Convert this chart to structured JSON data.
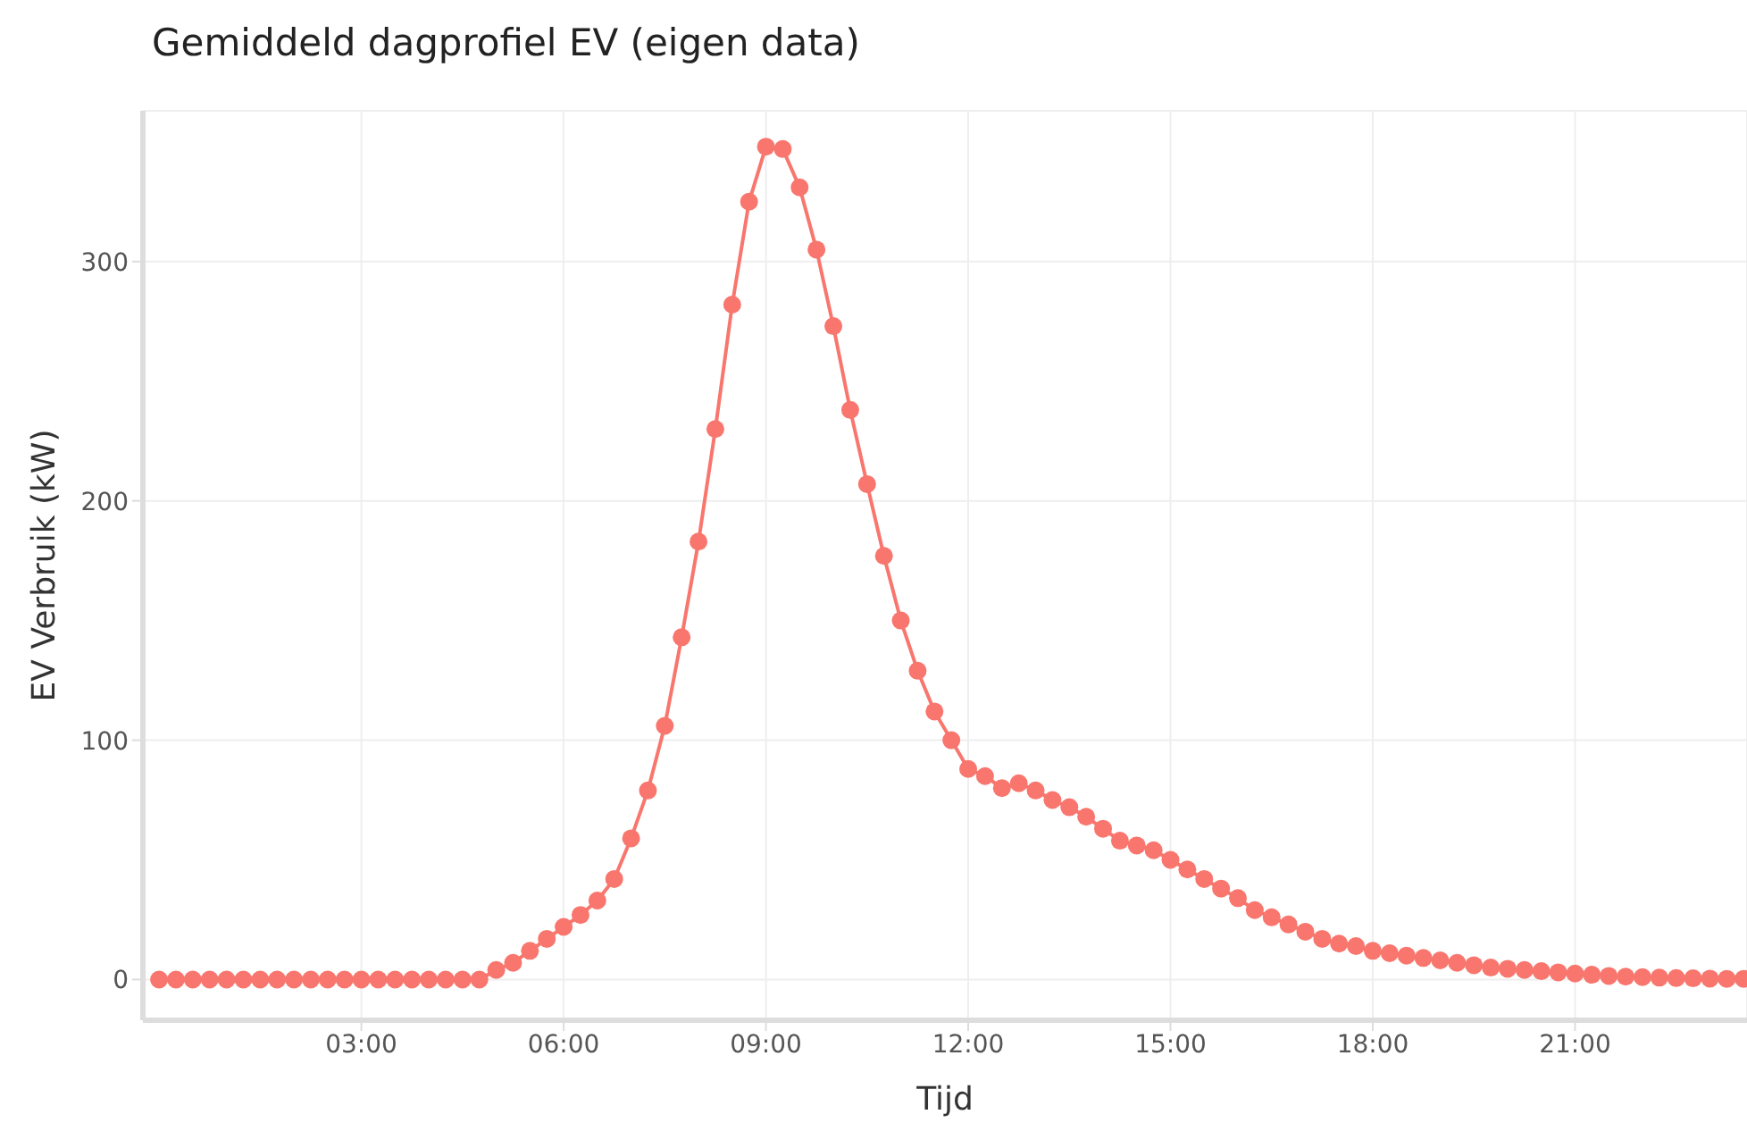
{
  "chart_data": {
    "type": "line",
    "title": "Gemiddeld dagprofiel EV (eigen data)",
    "xlabel": "Tijd",
    "ylabel": "EV Verbruik (kW)",
    "x": [
      0,
      0.25,
      0.5,
      0.75,
      1,
      1.25,
      1.5,
      1.75,
      2,
      2.25,
      2.5,
      2.75,
      3,
      3.25,
      3.5,
      3.75,
      4,
      4.25,
      4.5,
      4.75,
      5,
      5.25,
      5.5,
      5.75,
      6,
      6.25,
      6.5,
      6.75,
      7,
      7.25,
      7.5,
      7.75,
      8,
      8.25,
      8.5,
      8.75,
      9,
      9.25,
      9.5,
      9.75,
      10,
      10.25,
      10.5,
      10.75,
      11,
      11.25,
      11.5,
      11.75,
      12,
      12.25,
      12.5,
      12.75,
      13,
      13.25,
      13.5,
      13.75,
      14,
      14.25,
      14.5,
      14.75,
      15,
      15.25,
      15.5,
      15.75,
      16,
      16.25,
      16.5,
      16.75,
      17,
      17.25,
      17.5,
      17.75,
      18,
      18.25,
      18.5,
      18.75,
      19,
      19.25,
      19.5,
      19.75,
      20,
      20.25,
      20.5,
      20.75,
      21,
      21.25,
      21.5,
      21.75,
      22,
      22.25,
      22.5,
      22.75,
      23,
      23.25,
      23.5
    ],
    "series": [
      {
        "color": "#f8766d",
        "values": [
          0,
          0,
          0,
          0,
          0,
          0,
          0,
          0,
          0,
          0,
          0,
          0,
          0,
          0,
          0,
          0,
          0,
          0,
          0,
          0,
          4,
          7,
          12,
          17,
          22,
          27,
          33,
          42,
          59,
          79,
          106,
          143,
          183,
          230,
          282,
          325,
          348,
          347,
          331,
          305,
          273,
          238,
          207,
          177,
          150,
          129,
          112,
          100,
          88,
          85,
          80,
          82,
          79,
          75,
          72,
          68,
          63,
          58,
          56,
          54,
          50,
          46,
          42,
          38,
          34,
          29,
          26,
          23,
          20,
          17,
          15,
          14,
          12,
          11,
          10,
          9,
          8,
          7,
          6,
          5,
          4.5,
          4,
          3.5,
          3,
          2.5,
          2,
          1.5,
          1.2,
          1,
          0.8,
          0.6,
          0.5,
          0.4,
          0.3,
          0.3
        ]
      }
    ],
    "xlim": [
      -0.24,
      23.55
    ],
    "xticks": [
      {
        "value": 3,
        "label": "03:00"
      },
      {
        "value": 6,
        "label": "06:00"
      },
      {
        "value": 9,
        "label": "09:00"
      },
      {
        "value": 12,
        "label": "12:00"
      },
      {
        "value": 15,
        "label": "15:00"
      },
      {
        "value": 18,
        "label": "18:00"
      },
      {
        "value": 21,
        "label": "21:00"
      }
    ],
    "ylim": [
      -17,
      363
    ],
    "yticks": [
      0,
      100,
      200,
      300
    ],
    "grid": true,
    "marker": "circle",
    "line_style": "solid",
    "legend": false
  }
}
